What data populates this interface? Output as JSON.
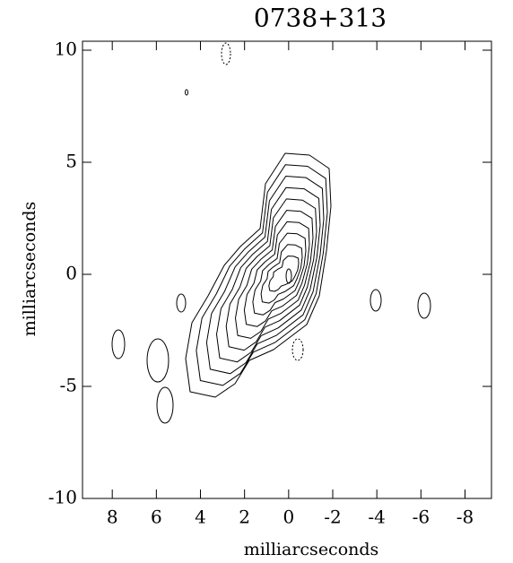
{
  "chart_data": {
    "type": "contour",
    "title": "0738+313",
    "x_label": "milliarcseconds",
    "y_label": "milliarcseconds",
    "xlim": [
      9.35,
      -9.2
    ],
    "ylim": [
      -10,
      10.4
    ],
    "xticks": [
      8,
      6,
      4,
      2,
      0,
      -2,
      -4,
      -6,
      -8
    ],
    "yticks": [
      10,
      5,
      0,
      -5,
      -10
    ]
  }
}
